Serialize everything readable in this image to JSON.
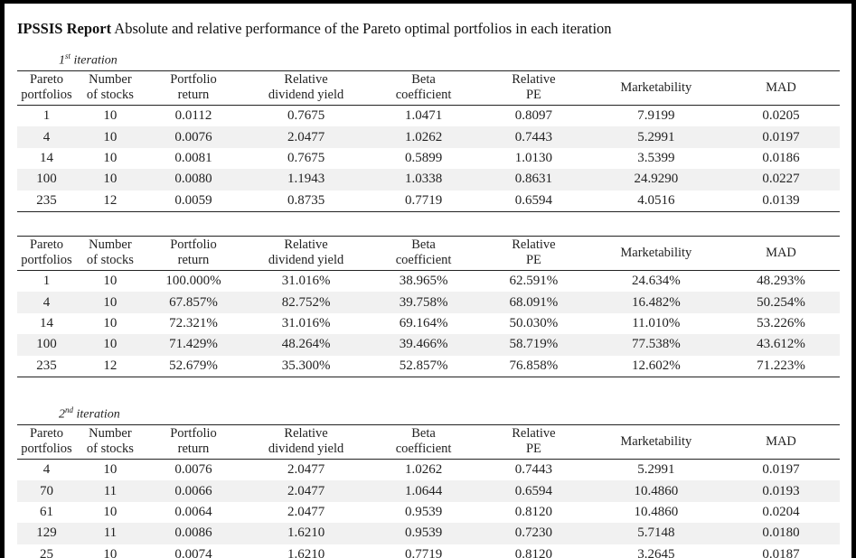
{
  "title": {
    "bold": "IPSSIS Report",
    "rest": " Absolute and relative performance of the Pareto optimal portfolios in each iteration"
  },
  "headers": [
    [
      "Pareto",
      "portfolios"
    ],
    [
      "Number",
      "of stocks"
    ],
    [
      "Portfolio",
      "return"
    ],
    [
      "Relative",
      "dividend yield"
    ],
    [
      "Beta",
      "coefficient"
    ],
    [
      "Relative",
      "PE"
    ],
    [
      "Marketability",
      ""
    ],
    [
      "MAD",
      ""
    ]
  ],
  "iteration1": {
    "label_num": "1",
    "label_sup": "st",
    "label_text": " iteration",
    "rows": [
      [
        "1",
        "10",
        "0.0112",
        "0.7675",
        "1.0471",
        "0.8097",
        "7.9199",
        "0.0205"
      ],
      [
        "4",
        "10",
        "0.0076",
        "2.0477",
        "1.0262",
        "0.7443",
        "5.2991",
        "0.0197"
      ],
      [
        "14",
        "10",
        "0.0081",
        "0.7675",
        "0.5899",
        "1.0130",
        "3.5399",
        "0.0186"
      ],
      [
        "100",
        "10",
        "0.0080",
        "1.1943",
        "1.0338",
        "0.8631",
        "24.9290",
        "0.0227"
      ],
      [
        "235",
        "12",
        "0.0059",
        "0.8735",
        "0.7719",
        "0.6594",
        "4.0516",
        "0.0139"
      ]
    ]
  },
  "relative": {
    "rows": [
      [
        "1",
        "10",
        "100.000%",
        "31.016%",
        "38.965%",
        "62.591%",
        "24.634%",
        "48.293%"
      ],
      [
        "4",
        "10",
        "67.857%",
        "82.752%",
        "39.758%",
        "68.091%",
        "16.482%",
        "50.254%"
      ],
      [
        "14",
        "10",
        "72.321%",
        "31.016%",
        "69.164%",
        "50.030%",
        "11.010%",
        "53.226%"
      ],
      [
        "100",
        "10",
        "71.429%",
        "48.264%",
        "39.466%",
        "58.719%",
        "77.538%",
        "43.612%"
      ],
      [
        "235",
        "12",
        "52.679%",
        "35.300%",
        "52.857%",
        "76.858%",
        "12.602%",
        "71.223%"
      ]
    ]
  },
  "iteration2": {
    "label_num": "2",
    "label_sup": "nd",
    "label_text": " iteration",
    "rows": [
      [
        "4",
        "10",
        "0.0076",
        "2.0477",
        "1.0262",
        "0.7443",
        "5.2991",
        "0.0197"
      ],
      [
        "70",
        "11",
        "0.0066",
        "2.0477",
        "1.0644",
        "0.6594",
        "10.4860",
        "0.0193"
      ],
      [
        "61",
        "10",
        "0.0064",
        "2.0477",
        "0.9539",
        "0.8120",
        "10.4860",
        "0.0204"
      ],
      [
        "129",
        "11",
        "0.0086",
        "1.6210",
        "0.9539",
        "0.7230",
        "5.7148",
        "0.0180"
      ],
      [
        "25",
        "10",
        "0.0074",
        "1.6210",
        "0.7719",
        "0.8120",
        "3.2645",
        "0.0187"
      ]
    ]
  },
  "colors": {
    "page": "#ffffff",
    "frame": "#000000",
    "text": "#222222",
    "stripe": "#f1f1f1"
  }
}
